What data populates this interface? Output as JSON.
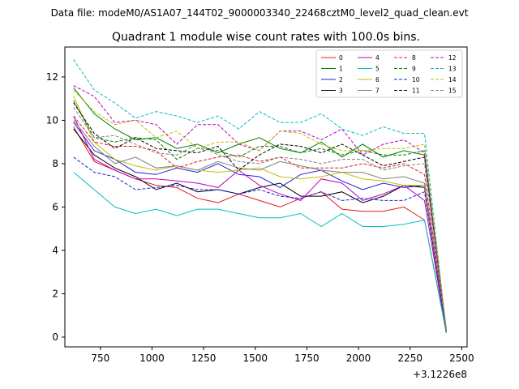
{
  "header": {
    "suptitle": "Data file: modeM0/AS1A07_144T02_9000003340_22468cztM0_level2_quad_clean.evt"
  },
  "chart_data": {
    "type": "line",
    "title": "Quadrant 1 module wise count rates with 100.0s bins.",
    "xlabel": "",
    "ylabel": "",
    "x_offset_label": "+3.1226e8",
    "x_offset": 312260000,
    "xlim": [
      578,
      2526
    ],
    "ylim": [
      -0.45,
      13.38
    ],
    "xticks": [
      750,
      1000,
      1250,
      1500,
      1750,
      2000,
      2250,
      2500
    ],
    "yticks": [
      0,
      2,
      4,
      6,
      8,
      10,
      12
    ],
    "grid": false,
    "legend": {
      "placement": "top-right",
      "columns": 4
    },
    "x": [
      620,
      720,
      820,
      920,
      1020,
      1120,
      1220,
      1320,
      1420,
      1520,
      1620,
      1720,
      1820,
      1920,
      2020,
      2120,
      2220,
      2320,
      2425
    ],
    "series": [
      {
        "name": "0",
        "color": "#e41a1c",
        "dash": false,
        "values": [
          9.7,
          8.1,
          7.7,
          7.3,
          7.0,
          6.9,
          6.4,
          6.2,
          6.6,
          6.3,
          6.0,
          6.4,
          6.7,
          5.9,
          5.8,
          5.8,
          6.0,
          5.4,
          0.25
        ]
      },
      {
        "name": "1",
        "color": "#008000",
        "dash": false,
        "values": [
          11.5,
          10.3,
          9.6,
          9.1,
          9.2,
          8.7,
          8.9,
          8.5,
          8.9,
          9.2,
          8.7,
          8.5,
          9.0,
          8.3,
          8.9,
          8.3,
          8.6,
          8.4,
          0.4
        ]
      },
      {
        "name": "2",
        "color": "#1f1fdd",
        "dash": false,
        "values": [
          9.9,
          8.6,
          8.2,
          7.6,
          7.5,
          7.8,
          7.6,
          8.0,
          7.5,
          7.4,
          6.9,
          7.5,
          7.7,
          7.2,
          6.8,
          7.1,
          6.9,
          7.0,
          0.3
        ]
      },
      {
        "name": "3",
        "color": "#000000",
        "dash": false,
        "values": [
          9.6,
          8.4,
          7.8,
          7.4,
          6.8,
          7.1,
          6.7,
          6.8,
          6.6,
          6.9,
          7.1,
          6.5,
          6.5,
          6.7,
          6.2,
          6.5,
          7.0,
          6.9,
          0.2
        ]
      },
      {
        "name": "4",
        "color": "#bf00bf",
        "dash": false,
        "values": [
          10.2,
          8.2,
          7.7,
          7.3,
          7.3,
          7.2,
          7.1,
          6.9,
          7.7,
          7.0,
          6.6,
          6.3,
          7.3,
          7.1,
          6.3,
          6.6,
          7.0,
          6.3,
          0.2
        ]
      },
      {
        "name": "5",
        "color": "#00bfbf",
        "dash": false,
        "values": [
          7.6,
          6.8,
          6.0,
          5.7,
          5.9,
          5.6,
          5.9,
          5.9,
          5.7,
          5.5,
          5.5,
          5.7,
          5.1,
          5.7,
          5.1,
          5.1,
          5.2,
          5.4,
          0.2
        ]
      },
      {
        "name": "6",
        "color": "#bfbf00",
        "dash": false,
        "values": [
          11.1,
          9.0,
          8.2,
          7.9,
          7.7,
          7.9,
          7.7,
          7.6,
          7.7,
          7.8,
          7.4,
          7.3,
          7.4,
          7.6,
          7.3,
          7.2,
          7.0,
          7.0,
          0.3
        ]
      },
      {
        "name": "7",
        "color": "#808080",
        "dash": false,
        "values": [
          10.0,
          8.8,
          8.0,
          8.3,
          7.8,
          7.9,
          7.7,
          8.1,
          7.8,
          7.7,
          8.1,
          7.9,
          7.7,
          7.6,
          7.6,
          7.3,
          7.4,
          7.1,
          0.25
        ]
      },
      {
        "name": "8",
        "color": "#e41a1c",
        "dash": true,
        "values": [
          10.2,
          9.0,
          8.8,
          8.8,
          8.6,
          7.8,
          8.1,
          8.3,
          8.4,
          8.1,
          8.3,
          7.8,
          7.8,
          7.8,
          8.0,
          7.8,
          8.0,
          7.5,
          0.25
        ]
      },
      {
        "name": "9",
        "color": "#008000",
        "dash": true,
        "values": [
          10.9,
          9.2,
          9.0,
          9.2,
          9.1,
          8.2,
          8.7,
          8.6,
          8.3,
          8.8,
          8.8,
          8.5,
          8.7,
          8.4,
          8.6,
          8.4,
          8.4,
          8.6,
          0.3
        ]
      },
      {
        "name": "10",
        "color": "#1f1fdd",
        "dash": true,
        "values": [
          8.3,
          7.6,
          7.4,
          6.8,
          6.9,
          7.0,
          6.8,
          6.8,
          6.6,
          6.8,
          6.5,
          6.4,
          6.7,
          6.3,
          6.4,
          6.3,
          6.3,
          6.7,
          0.2
        ]
      },
      {
        "name": "11",
        "color": "#000000",
        "dash": true,
        "values": [
          10.8,
          9.4,
          8.7,
          9.2,
          8.7,
          8.6,
          8.5,
          8.8,
          7.7,
          8.4,
          8.9,
          8.8,
          8.5,
          8.9,
          8.4,
          7.9,
          8.1,
          8.3,
          0.3
        ]
      },
      {
        "name": "12",
        "color": "#bf00bf",
        "dash": true,
        "values": [
          11.6,
          11.1,
          9.9,
          10.0,
          9.8,
          8.9,
          9.8,
          9.8,
          8.9,
          8.6,
          9.5,
          9.5,
          9.1,
          9.6,
          8.4,
          8.9,
          9.1,
          8.5,
          0.3
        ]
      },
      {
        "name": "13",
        "color": "#00bfbf",
        "dash": true,
        "values": [
          12.8,
          11.4,
          10.8,
          10.1,
          10.4,
          10.2,
          9.9,
          10.2,
          9.6,
          10.4,
          9.9,
          9.9,
          10.3,
          9.6,
          9.3,
          9.7,
          9.4,
          9.4,
          0.3
        ]
      },
      {
        "name": "14",
        "color": "#bfbf00",
        "dash": true,
        "values": [
          11.4,
          10.4,
          9.8,
          10.0,
          9.2,
          9.5,
          8.7,
          9.0,
          9.0,
          8.6,
          9.5,
          9.4,
          8.9,
          8.6,
          8.6,
          8.7,
          8.7,
          8.9,
          0.4
        ]
      },
      {
        "name": "15",
        "color": "#808080",
        "dash": true,
        "values": [
          10.6,
          9.2,
          9.3,
          8.9,
          8.5,
          8.4,
          8.9,
          8.4,
          8.1,
          8.0,
          8.3,
          8.2,
          8.0,
          8.2,
          8.2,
          7.7,
          7.9,
          8.0,
          0.25
        ]
      }
    ]
  }
}
